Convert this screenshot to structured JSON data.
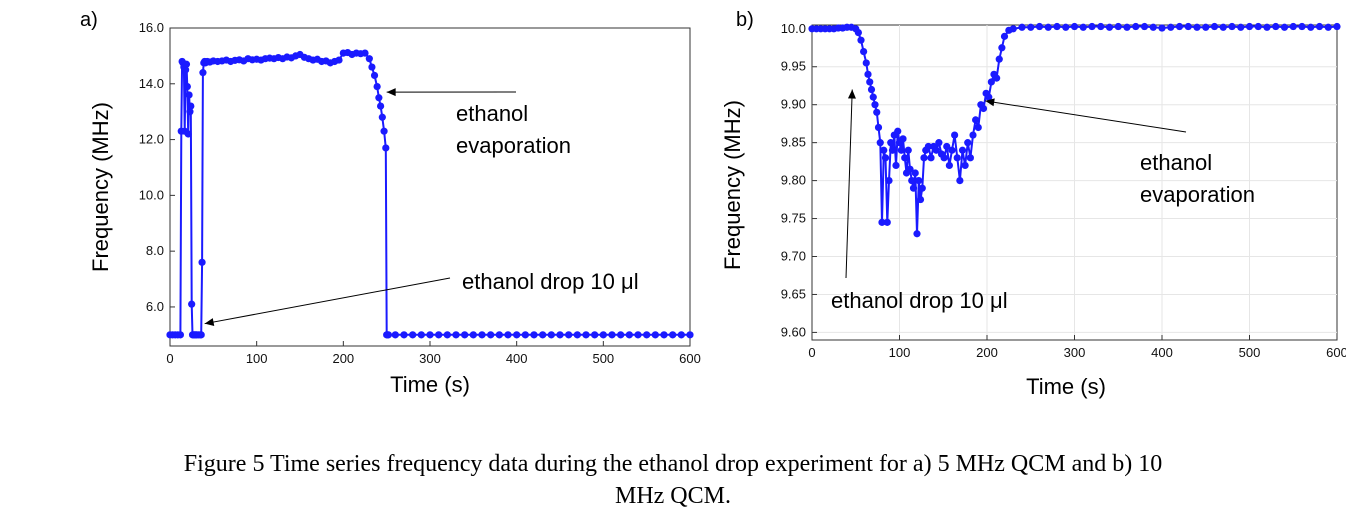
{
  "chart_data": [
    {
      "type": "scatter",
      "panel_label": "a)",
      "title": "",
      "xlabel": "Time (s)",
      "ylabel": "Frequency (MHz)",
      "xlim": [
        0,
        600
      ],
      "ylim": [
        4.6,
        16.0
      ],
      "xticks": [
        0,
        100,
        200,
        300,
        400,
        500,
        600
      ],
      "xtick_labels": [
        "0",
        "100",
        "200",
        "300",
        "400",
        "500",
        "600"
      ],
      "yticks": [
        6,
        8,
        10,
        12,
        14,
        16
      ],
      "ytick_labels": [
        "6.0",
        "8.0",
        "10.0",
        "12.0",
        "14.0",
        "16.0"
      ],
      "grid": false,
      "series": [
        {
          "name": "5 MHz QCM",
          "color": "#1a1aff",
          "x": [
            0,
            3,
            6,
            9,
            12,
            13,
            14,
            15,
            16,
            17,
            18,
            19,
            20,
            21,
            22,
            23,
            24,
            25,
            26,
            27,
            28,
            29,
            30,
            31,
            33,
            35,
            36,
            37,
            38,
            39,
            40,
            41,
            43,
            46,
            50,
            55,
            60,
            65,
            70,
            75,
            80,
            85,
            90,
            95,
            100,
            105,
            110,
            115,
            120,
            125,
            130,
            135,
            140,
            145,
            150,
            155,
            160,
            165,
            170,
            175,
            180,
            185,
            190,
            195,
            200,
            205,
            210,
            215,
            220,
            225,
            230,
            233,
            236,
            239,
            241,
            243,
            245,
            247,
            249,
            250,
            251,
            252,
            260,
            270,
            280,
            290,
            300,
            310,
            320,
            330,
            340,
            350,
            360,
            370,
            380,
            390,
            400,
            410,
            420,
            430,
            440,
            450,
            460,
            470,
            480,
            490,
            500,
            510,
            520,
            530,
            540,
            550,
            560,
            570,
            580,
            590,
            600
          ],
          "y": [
            5.0,
            5.0,
            5.0,
            5.0,
            5.0,
            12.3,
            14.8,
            14.75,
            14.6,
            12.3,
            14.5,
            14.7,
            13.9,
            12.2,
            13.6,
            13.0,
            13.2,
            6.1,
            5.0,
            5.0,
            5.0,
            5.0,
            5.0,
            5.0,
            5.0,
            5.0,
            5.0,
            7.6,
            14.4,
            14.75,
            14.8,
            14.75,
            14.8,
            14.78,
            14.82,
            14.8,
            14.82,
            14.85,
            14.8,
            14.84,
            14.86,
            14.82,
            14.9,
            14.86,
            14.88,
            14.85,
            14.9,
            14.92,
            14.9,
            14.94,
            14.9,
            14.96,
            14.93,
            15.0,
            15.05,
            14.95,
            14.9,
            14.85,
            14.88,
            14.8,
            14.82,
            14.75,
            14.8,
            14.85,
            15.1,
            15.12,
            15.05,
            15.1,
            15.08,
            15.1,
            14.9,
            14.6,
            14.3,
            13.9,
            13.5,
            13.2,
            12.8,
            12.3,
            11.7,
            5.0,
            5.0,
            5.0,
            5.0,
            5.0,
            5.0,
            5.0,
            5.0,
            5.0,
            5.0,
            5.0,
            5.0,
            5.0,
            5.0,
            5.0,
            5.0,
            5.0,
            5.0,
            5.0,
            5.0,
            5.0,
            5.0,
            5.0,
            5.0,
            5.0,
            5.0,
            5.0,
            5.0,
            5.0,
            5.0,
            5.0,
            5.0,
            5.0,
            5.0,
            5.0,
            5.0,
            5.0,
            5.0
          ]
        }
      ],
      "annotations": [
        {
          "lines": [
            "ethanol",
            "evaporation"
          ],
          "arrow_to": [
            250,
            13.7
          ]
        },
        {
          "lines": [
            "ethanol drop 10 μl"
          ],
          "arrow_to": [
            40,
            5.4
          ]
        }
      ]
    },
    {
      "type": "scatter",
      "panel_label": "b)",
      "title": "",
      "xlabel": "Time (s)",
      "ylabel": "Frequency (MHz)",
      "xlim": [
        0,
        600
      ],
      "ylim": [
        9.59,
        10.005
      ],
      "xticks": [
        0,
        100,
        200,
        300,
        400,
        500,
        600
      ],
      "xtick_labels": [
        "0",
        "100",
        "200",
        "300",
        "400",
        "500",
        "600"
      ],
      "yticks": [
        9.6,
        9.65,
        9.7,
        9.75,
        9.8,
        9.85,
        9.9,
        9.95,
        10.0
      ],
      "ytick_labels": [
        "9.60",
        "9.65",
        "9.70",
        "9.75",
        "9.80",
        "9.85",
        "9.90",
        "9.95",
        "10.0"
      ],
      "grid": true,
      "series": [
        {
          "name": "10 MHz QCM",
          "color": "#1a1aff",
          "x": [
            0,
            5,
            10,
            15,
            20,
            25,
            30,
            35,
            40,
            45,
            50,
            53,
            56,
            59,
            62,
            64,
            66,
            68,
            70,
            72,
            74,
            76,
            78,
            80,
            82,
            84,
            86,
            88,
            90,
            92,
            94,
            96,
            98,
            100,
            102,
            104,
            106,
            108,
            110,
            112,
            114,
            116,
            118,
            120,
            122,
            124,
            126,
            128,
            130,
            133,
            136,
            139,
            142,
            145,
            148,
            151,
            154,
            157,
            160,
            163,
            166,
            169,
            172,
            175,
            178,
            181,
            184,
            187,
            190,
            193,
            196,
            199,
            202,
            205,
            208,
            211,
            214,
            217,
            220,
            225,
            230,
            240,
            250,
            260,
            270,
            280,
            290,
            300,
            310,
            320,
            330,
            340,
            350,
            360,
            370,
            380,
            390,
            400,
            410,
            420,
            430,
            440,
            450,
            460,
            470,
            480,
            490,
            500,
            510,
            520,
            530,
            540,
            550,
            560,
            570,
            580,
            590,
            600
          ],
          "y": [
            10.0,
            10.0,
            10.0,
            10.0,
            10.0,
            10.0,
            10.001,
            10.001,
            10.002,
            10.002,
            10.0,
            9.995,
            9.985,
            9.97,
            9.955,
            9.94,
            9.93,
            9.92,
            9.91,
            9.9,
            9.89,
            9.87,
            9.85,
            9.745,
            9.84,
            9.83,
            9.745,
            9.8,
            9.85,
            9.84,
            9.86,
            9.82,
            9.865,
            9.85,
            9.84,
            9.855,
            9.83,
            9.81,
            9.84,
            9.815,
            9.8,
            9.79,
            9.81,
            9.73,
            9.8,
            9.775,
            9.79,
            9.83,
            9.84,
            9.845,
            9.83,
            9.845,
            9.84,
            9.85,
            9.835,
            9.83,
            9.845,
            9.82,
            9.84,
            9.86,
            9.83,
            9.8,
            9.84,
            9.82,
            9.85,
            9.83,
            9.86,
            9.88,
            9.87,
            9.9,
            9.895,
            9.915,
            9.91,
            9.93,
            9.94,
            9.935,
            9.96,
            9.975,
            9.99,
            9.998,
            10.0,
            10.002,
            10.002,
            10.003,
            10.002,
            10.003,
            10.002,
            10.003,
            10.002,
            10.003,
            10.003,
            10.002,
            10.003,
            10.002,
            10.003,
            10.003,
            10.002,
            10.001,
            10.002,
            10.003,
            10.003,
            10.002,
            10.002,
            10.003,
            10.002,
            10.003,
            10.002,
            10.003,
            10.003,
            10.002,
            10.003,
            10.002,
            10.003,
            10.003,
            10.002,
            10.003,
            10.002,
            10.003
          ]
        }
      ],
      "annotations": [
        {
          "lines": [
            "ethanol",
            "evaporation"
          ],
          "arrow_to": [
            198,
            9.905
          ]
        },
        {
          "lines": [
            "ethanol drop 10 μl"
          ],
          "arrow_to": [
            46,
            9.92
          ]
        }
      ]
    }
  ],
  "caption": {
    "line1": "Figure 5 Time series frequency data during the ethanol drop experiment for a) 5 MHz QCM and b) 10",
    "line2": "MHz QCM."
  },
  "colors": {
    "series": "#1a1aff",
    "axis": "#333333",
    "grid": "#e6e6e6"
  }
}
